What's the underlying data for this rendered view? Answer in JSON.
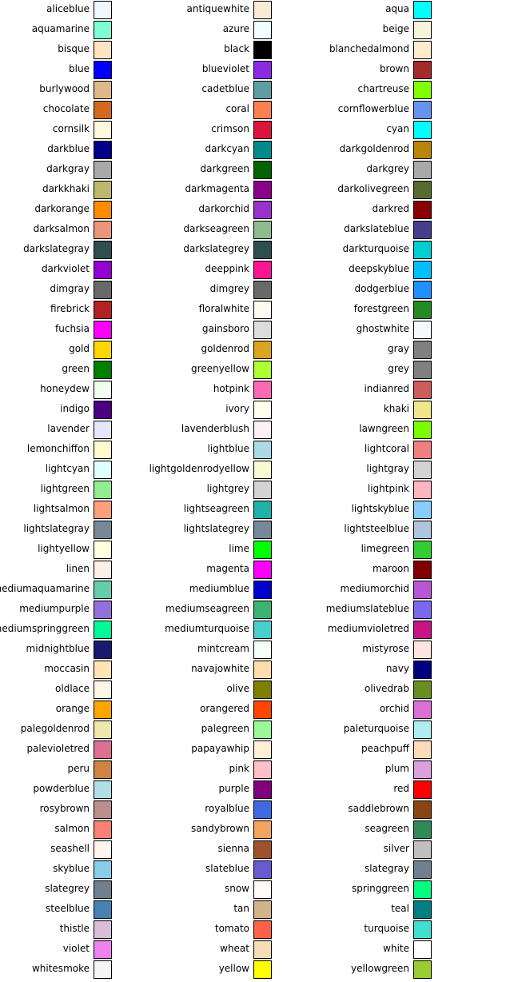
{
  "chart_data": {
    "type": "table",
    "columns": 3,
    "colors": [
      {
        "name": "aliceblue",
        "hex": "#F0F8FF"
      },
      {
        "name": "antiquewhite",
        "hex": "#FAEBD7"
      },
      {
        "name": "aqua",
        "hex": "#00FFFF"
      },
      {
        "name": "aquamarine",
        "hex": "#7FFFD4"
      },
      {
        "name": "azure",
        "hex": "#F0FFFF"
      },
      {
        "name": "beige",
        "hex": "#F5F5DC"
      },
      {
        "name": "bisque",
        "hex": "#FFE4C4"
      },
      {
        "name": "black",
        "hex": "#000000"
      },
      {
        "name": "blanchedalmond",
        "hex": "#FFEBCD"
      },
      {
        "name": "blue",
        "hex": "#0000FF"
      },
      {
        "name": "blueviolet",
        "hex": "#8A2BE2"
      },
      {
        "name": "brown",
        "hex": "#A52A2A"
      },
      {
        "name": "burlywood",
        "hex": "#DEB887"
      },
      {
        "name": "cadetblue",
        "hex": "#5F9EA0"
      },
      {
        "name": "chartreuse",
        "hex": "#7FFF00"
      },
      {
        "name": "chocolate",
        "hex": "#D2691E"
      },
      {
        "name": "coral",
        "hex": "#FF7F50"
      },
      {
        "name": "cornflowerblue",
        "hex": "#6495ED"
      },
      {
        "name": "cornsilk",
        "hex": "#FFF8DC"
      },
      {
        "name": "crimson",
        "hex": "#DC143C"
      },
      {
        "name": "cyan",
        "hex": "#00FFFF"
      },
      {
        "name": "darkblue",
        "hex": "#00008B"
      },
      {
        "name": "darkcyan",
        "hex": "#008B8B"
      },
      {
        "name": "darkgoldenrod",
        "hex": "#B8860B"
      },
      {
        "name": "darkgray",
        "hex": "#A9A9A9"
      },
      {
        "name": "darkgreen",
        "hex": "#006400"
      },
      {
        "name": "darkgrey",
        "hex": "#A9A9A9"
      },
      {
        "name": "darkkhaki",
        "hex": "#BDB76B"
      },
      {
        "name": "darkmagenta",
        "hex": "#8B008B"
      },
      {
        "name": "darkolivegreen",
        "hex": "#556B2F"
      },
      {
        "name": "darkorange",
        "hex": "#FF8C00"
      },
      {
        "name": "darkorchid",
        "hex": "#9932CC"
      },
      {
        "name": "darkred",
        "hex": "#8B0000"
      },
      {
        "name": "darksalmon",
        "hex": "#E9967A"
      },
      {
        "name": "darkseagreen",
        "hex": "#8FBC8F"
      },
      {
        "name": "darkslateblue",
        "hex": "#483D8B"
      },
      {
        "name": "darkslategray",
        "hex": "#2F4F4F"
      },
      {
        "name": "darkslategrey",
        "hex": "#2F4F4F"
      },
      {
        "name": "darkturquoise",
        "hex": "#00CED1"
      },
      {
        "name": "darkviolet",
        "hex": "#9400D3"
      },
      {
        "name": "deeppink",
        "hex": "#FF1493"
      },
      {
        "name": "deepskyblue",
        "hex": "#00BFFF"
      },
      {
        "name": "dimgray",
        "hex": "#696969"
      },
      {
        "name": "dimgrey",
        "hex": "#696969"
      },
      {
        "name": "dodgerblue",
        "hex": "#1E90FF"
      },
      {
        "name": "firebrick",
        "hex": "#B22222"
      },
      {
        "name": "floralwhite",
        "hex": "#FFFAF0"
      },
      {
        "name": "forestgreen",
        "hex": "#228B22"
      },
      {
        "name": "fuchsia",
        "hex": "#FF00FF"
      },
      {
        "name": "gainsboro",
        "hex": "#DCDCDC"
      },
      {
        "name": "ghostwhite",
        "hex": "#F8F8FF"
      },
      {
        "name": "gold",
        "hex": "#FFD700"
      },
      {
        "name": "goldenrod",
        "hex": "#DAA520"
      },
      {
        "name": "gray",
        "hex": "#808080"
      },
      {
        "name": "green",
        "hex": "#008000"
      },
      {
        "name": "greenyellow",
        "hex": "#ADFF2F"
      },
      {
        "name": "grey",
        "hex": "#808080"
      },
      {
        "name": "honeydew",
        "hex": "#F0FFF0"
      },
      {
        "name": "hotpink",
        "hex": "#FF69B4"
      },
      {
        "name": "indianred",
        "hex": "#CD5C5C"
      },
      {
        "name": "indigo",
        "hex": "#4B0082"
      },
      {
        "name": "ivory",
        "hex": "#FFFFF0"
      },
      {
        "name": "khaki",
        "hex": "#F0E68C"
      },
      {
        "name": "lavender",
        "hex": "#E6E6FA"
      },
      {
        "name": "lavenderblush",
        "hex": "#FFF0F5"
      },
      {
        "name": "lawngreen",
        "hex": "#7CFC00"
      },
      {
        "name": "lemonchiffon",
        "hex": "#FFFACD"
      },
      {
        "name": "lightblue",
        "hex": "#ADD8E6"
      },
      {
        "name": "lightcoral",
        "hex": "#F08080"
      },
      {
        "name": "lightcyan",
        "hex": "#E0FFFF"
      },
      {
        "name": "lightgoldenrodyellow",
        "hex": "#FAFAD2"
      },
      {
        "name": "lightgray",
        "hex": "#D3D3D3"
      },
      {
        "name": "lightgreen",
        "hex": "#90EE90"
      },
      {
        "name": "lightgrey",
        "hex": "#D3D3D3"
      },
      {
        "name": "lightpink",
        "hex": "#FFB6C1"
      },
      {
        "name": "lightsalmon",
        "hex": "#FFA07A"
      },
      {
        "name": "lightseagreen",
        "hex": "#20B2AA"
      },
      {
        "name": "lightskyblue",
        "hex": "#87CEFA"
      },
      {
        "name": "lightslategray",
        "hex": "#778899"
      },
      {
        "name": "lightslategrey",
        "hex": "#778899"
      },
      {
        "name": "lightsteelblue",
        "hex": "#B0C4DE"
      },
      {
        "name": "lightyellow",
        "hex": "#FFFFE0"
      },
      {
        "name": "lime",
        "hex": "#00FF00"
      },
      {
        "name": "limegreen",
        "hex": "#32CD32"
      },
      {
        "name": "linen",
        "hex": "#FAF0E6"
      },
      {
        "name": "magenta",
        "hex": "#FF00FF"
      },
      {
        "name": "maroon",
        "hex": "#800000"
      },
      {
        "name": "mediumaquamarine",
        "hex": "#66CDAA"
      },
      {
        "name": "mediumblue",
        "hex": "#0000CD"
      },
      {
        "name": "mediumorchid",
        "hex": "#BA55D3"
      },
      {
        "name": "mediumpurple",
        "hex": "#9370DB"
      },
      {
        "name": "mediumseagreen",
        "hex": "#3CB371"
      },
      {
        "name": "mediumslateblue",
        "hex": "#7B68EE"
      },
      {
        "name": "mediumspringgreen",
        "hex": "#00FA9A"
      },
      {
        "name": "mediumturquoise",
        "hex": "#48D1CC"
      },
      {
        "name": "mediumvioletred",
        "hex": "#C71585"
      },
      {
        "name": "midnightblue",
        "hex": "#191970"
      },
      {
        "name": "mintcream",
        "hex": "#F5FFFA"
      },
      {
        "name": "mistyrose",
        "hex": "#FFE4E1"
      },
      {
        "name": "moccasin",
        "hex": "#FFE4B5"
      },
      {
        "name": "navajowhite",
        "hex": "#FFDEAD"
      },
      {
        "name": "navy",
        "hex": "#000080"
      },
      {
        "name": "oldlace",
        "hex": "#FDF5E6"
      },
      {
        "name": "olive",
        "hex": "#808000"
      },
      {
        "name": "olivedrab",
        "hex": "#6B8E23"
      },
      {
        "name": "orange",
        "hex": "#FFA500"
      },
      {
        "name": "orangered",
        "hex": "#FF4500"
      },
      {
        "name": "orchid",
        "hex": "#DA70D6"
      },
      {
        "name": "palegoldenrod",
        "hex": "#EEE8AA"
      },
      {
        "name": "palegreen",
        "hex": "#98FB98"
      },
      {
        "name": "paleturquoise",
        "hex": "#AFEEEE"
      },
      {
        "name": "palevioletred",
        "hex": "#DB7093"
      },
      {
        "name": "papayawhip",
        "hex": "#FFEFD5"
      },
      {
        "name": "peachpuff",
        "hex": "#FFDAB9"
      },
      {
        "name": "peru",
        "hex": "#CD853F"
      },
      {
        "name": "pink",
        "hex": "#FFC0CB"
      },
      {
        "name": "plum",
        "hex": "#DDA0DD"
      },
      {
        "name": "powderblue",
        "hex": "#B0E0E6"
      },
      {
        "name": "purple",
        "hex": "#800080"
      },
      {
        "name": "red",
        "hex": "#FF0000"
      },
      {
        "name": "rosybrown",
        "hex": "#BC8F8F"
      },
      {
        "name": "royalblue",
        "hex": "#4169E1"
      },
      {
        "name": "saddlebrown",
        "hex": "#8B4513"
      },
      {
        "name": "salmon",
        "hex": "#FA8072"
      },
      {
        "name": "sandybrown",
        "hex": "#F4A460"
      },
      {
        "name": "seagreen",
        "hex": "#2E8B57"
      },
      {
        "name": "seashell",
        "hex": "#FFF5EE"
      },
      {
        "name": "sienna",
        "hex": "#A0522D"
      },
      {
        "name": "silver",
        "hex": "#C0C0C0"
      },
      {
        "name": "skyblue",
        "hex": "#87CEEB"
      },
      {
        "name": "slateblue",
        "hex": "#6A5ACD"
      },
      {
        "name": "slategray",
        "hex": "#708090"
      },
      {
        "name": "slategrey",
        "hex": "#708090"
      },
      {
        "name": "snow",
        "hex": "#FFFAFA"
      },
      {
        "name": "springgreen",
        "hex": "#00FF7F"
      },
      {
        "name": "steelblue",
        "hex": "#4682B4"
      },
      {
        "name": "tan",
        "hex": "#D2B48C"
      },
      {
        "name": "teal",
        "hex": "#008080"
      },
      {
        "name": "thistle",
        "hex": "#D8BFD8"
      },
      {
        "name": "tomato",
        "hex": "#FF6347"
      },
      {
        "name": "turquoise",
        "hex": "#40E0D0"
      },
      {
        "name": "violet",
        "hex": "#EE82EE"
      },
      {
        "name": "wheat",
        "hex": "#F5DEB3"
      },
      {
        "name": "white",
        "hex": "#FFFFFF"
      },
      {
        "name": "whitesmoke",
        "hex": "#F5F5F5"
      },
      {
        "name": "yellow",
        "hex": "#FFFF00"
      },
      {
        "name": "yellowgreen",
        "hex": "#9ACD32"
      }
    ]
  }
}
